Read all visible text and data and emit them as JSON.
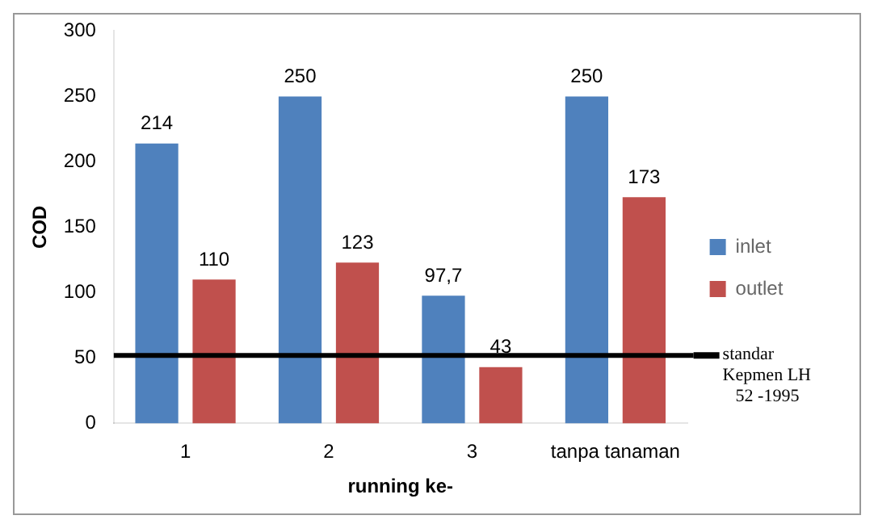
{
  "chart_data": {
    "type": "bar",
    "categories": [
      "1",
      "2",
      "3",
      "tanpa tanaman"
    ],
    "series": [
      {
        "name": "inlet",
        "color": "#4f81bd",
        "values": [
          214,
          250,
          97.7,
          250
        ],
        "value_labels": [
          "214",
          "250",
          "97,7",
          "250"
        ]
      },
      {
        "name": "outlet",
        "color": "#c0504d",
        "values": [
          110,
          123,
          43,
          173
        ],
        "value_labels": [
          "110",
          "123",
          "43",
          "173"
        ]
      }
    ],
    "xlabel": "running ke-",
    "ylabel": "COD",
    "ylim": [
      0,
      300
    ],
    "yticks": [
      0,
      50,
      100,
      150,
      200,
      250,
      300
    ],
    "grid": false,
    "legend": "right",
    "ref_lines": [
      {
        "axis": "y",
        "value": 52,
        "label": "standar Kepmen LH 52 -1995",
        "color": "#000000"
      }
    ]
  }
}
